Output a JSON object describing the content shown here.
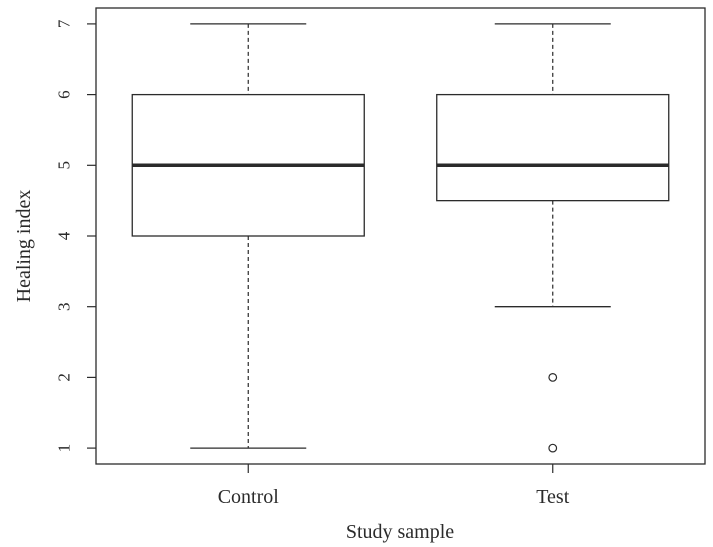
{
  "chart_data": {
    "type": "boxplot",
    "title": "",
    "xlabel": "Study sample",
    "ylabel": "Healing index",
    "categories": [
      "Control",
      "Test"
    ],
    "boxes": [
      {
        "category": "Control",
        "whisker_low": 1,
        "q1": 4,
        "median": 5,
        "q3": 6,
        "whisker_high": 7,
        "outliers": []
      },
      {
        "category": "Test",
        "whisker_low": 3,
        "q1": 4.5,
        "median": 5,
        "q3": 6,
        "whisker_high": 7,
        "outliers": [
          2,
          1
        ]
      }
    ],
    "yticks": [
      "1",
      "2",
      "3",
      "4",
      "5",
      "6",
      "7"
    ],
    "ylim": [
      0.775,
      7.225
    ],
    "grid": false,
    "colors": {
      "stroke": "#2b2b2b",
      "box_fill": "#ffffff"
    }
  }
}
